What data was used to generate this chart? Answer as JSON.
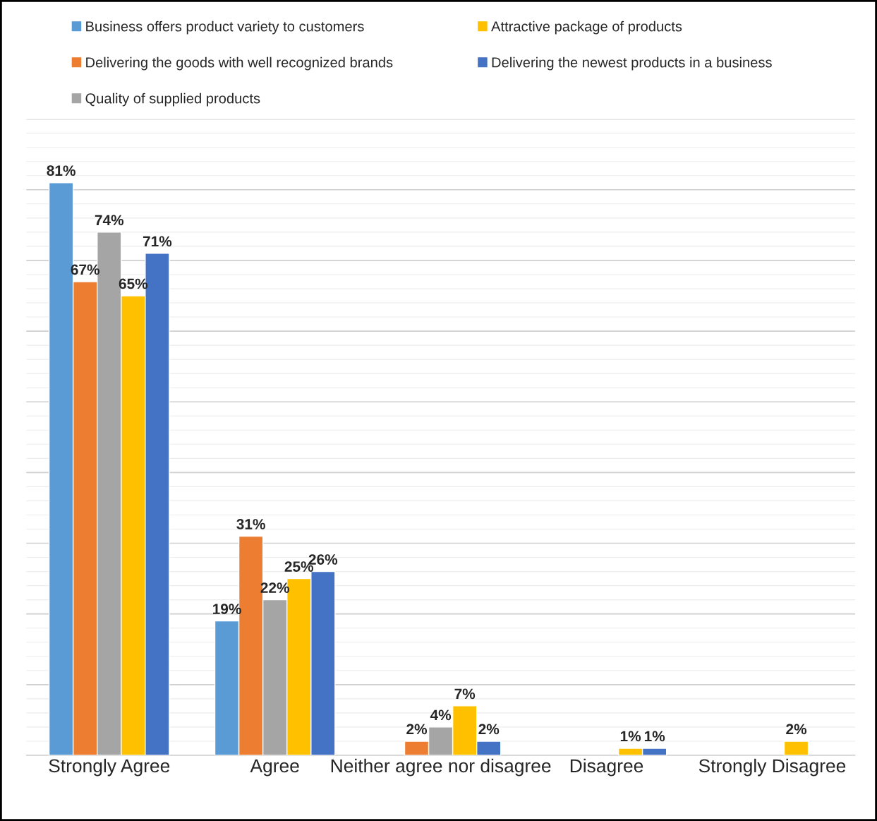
{
  "chart_data": {
    "type": "bar",
    "categories": [
      "Strongly Agree",
      "Agree",
      "Neither agree nor disagree",
      "Disagree",
      "Strongly Disagree"
    ],
    "series": [
      {
        "name": "Business offers product variety to customers",
        "color": "#5b9bd5",
        "values": [
          81,
          19,
          null,
          null,
          null
        ],
        "value_labels": [
          "81%",
          "19%",
          null,
          null,
          null
        ]
      },
      {
        "name": "Delivering the goods with well recognized brands",
        "color": "#ed7d31",
        "values": [
          67,
          31,
          2,
          null,
          null
        ],
        "value_labels": [
          "67%",
          "31%",
          "2%",
          null,
          null
        ]
      },
      {
        "name": "Quality of supplied products",
        "color": "#a5a5a5",
        "values": [
          74,
          22,
          4,
          null,
          null
        ],
        "value_labels": [
          "74%",
          "22%",
          "4%",
          null,
          null
        ]
      },
      {
        "name": "Attractive package of products",
        "color": "#ffc000",
        "values": [
          65,
          25,
          7,
          1,
          2
        ],
        "value_labels": [
          "65%",
          "25%",
          "7%",
          "1%",
          "2%"
        ]
      },
      {
        "name": "Delivering the newest products in a business",
        "color": "#4472c4",
        "values": [
          71,
          26,
          2,
          1,
          null
        ],
        "value_labels": [
          "71%",
          "26%",
          "2%",
          "1%",
          null
        ]
      }
    ],
    "ylim": [
      0,
      90
    ],
    "yticks": [
      {
        "value": 0,
        "label": null
      },
      {
        "value": 10,
        "label": null
      },
      {
        "value": 20,
        "label": null
      },
      {
        "value": 30,
        "label": null
      },
      {
        "value": 40,
        "label": null
      },
      {
        "value": 50,
        "label": null
      },
      {
        "value": 60,
        "label": null
      },
      {
        "value": 70,
        "label": null
      },
      {
        "value": 80,
        "label": null
      },
      {
        "value": 90,
        "label": null
      }
    ],
    "grid": "y",
    "legend": "top",
    "tick_labels": "x"
  }
}
